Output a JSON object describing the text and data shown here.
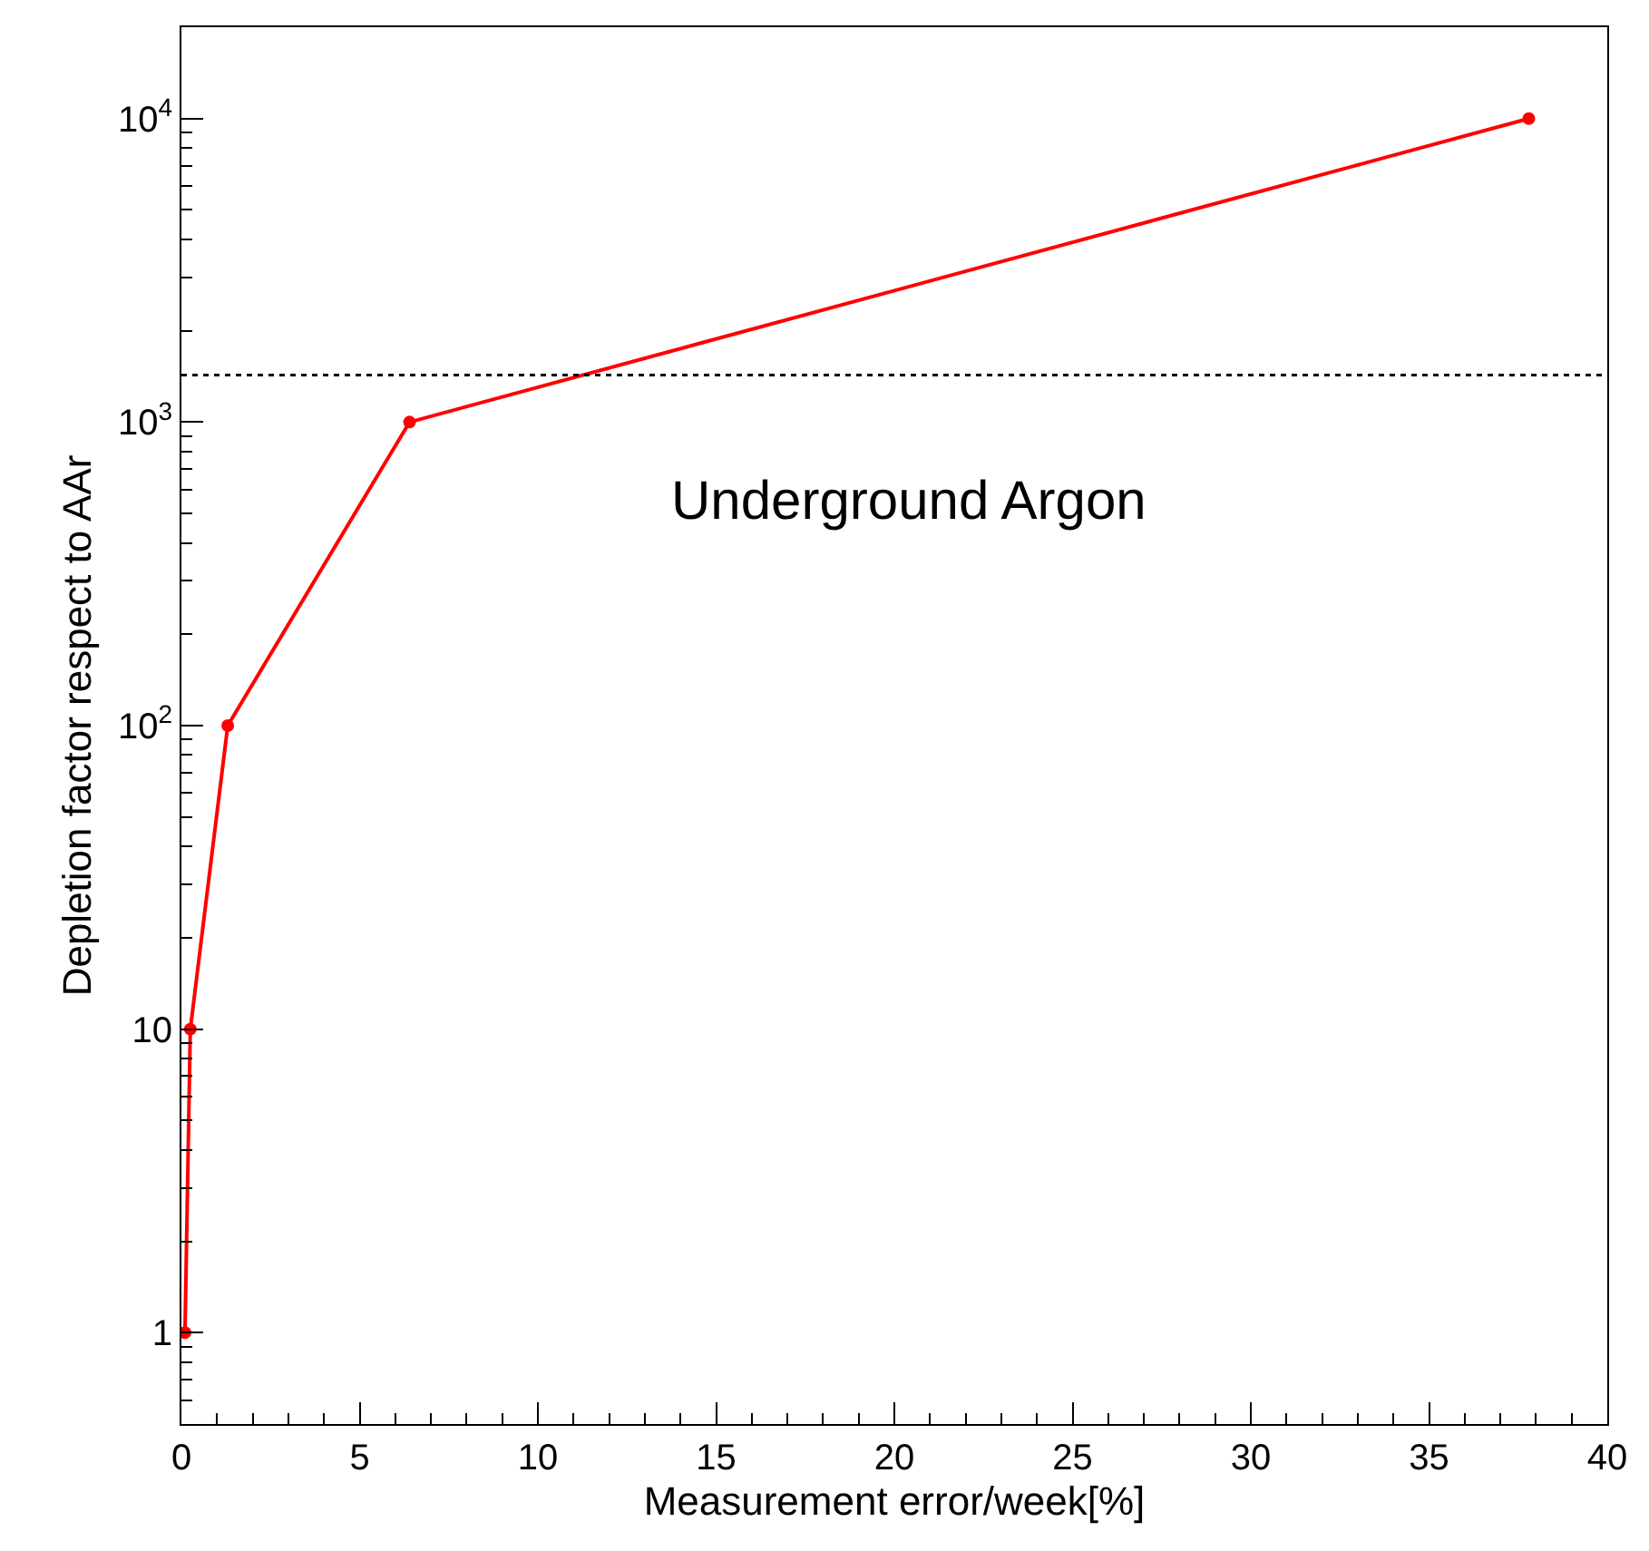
{
  "chart_data": {
    "type": "line",
    "xlabel": "Measurement error/week[%]",
    "ylabel": "Depletion factor respect to AAr",
    "x": [
      0.1,
      0.25,
      1.3,
      6.4,
      37.8
    ],
    "series": [
      {
        "color": "#ff0000",
        "values": [
          1,
          10,
          100,
          1000,
          10000
        ]
      }
    ],
    "marker": "circle",
    "line_style": "solid",
    "log": "y",
    "xlim": [
      0,
      40
    ],
    "xticks": [
      0,
      5,
      10,
      15,
      20,
      25,
      30,
      35,
      40
    ],
    "ylim": [
      0.5,
      20000
    ],
    "yticks": [
      1,
      10,
      {
        "value": 100,
        "label": "10$^{2}$"
      },
      {
        "value": 1000,
        "label": "10$^{3}$"
      },
      {
        "value": 10000,
        "label": "10$^{4}$"
      }
    ],
    "ref_lines": [
      {
        "axis": "y",
        "value": 1430,
        "color": "#000000",
        "line_style": "dotted"
      }
    ],
    "annotations": [
      "Underground Argon"
    ]
  }
}
